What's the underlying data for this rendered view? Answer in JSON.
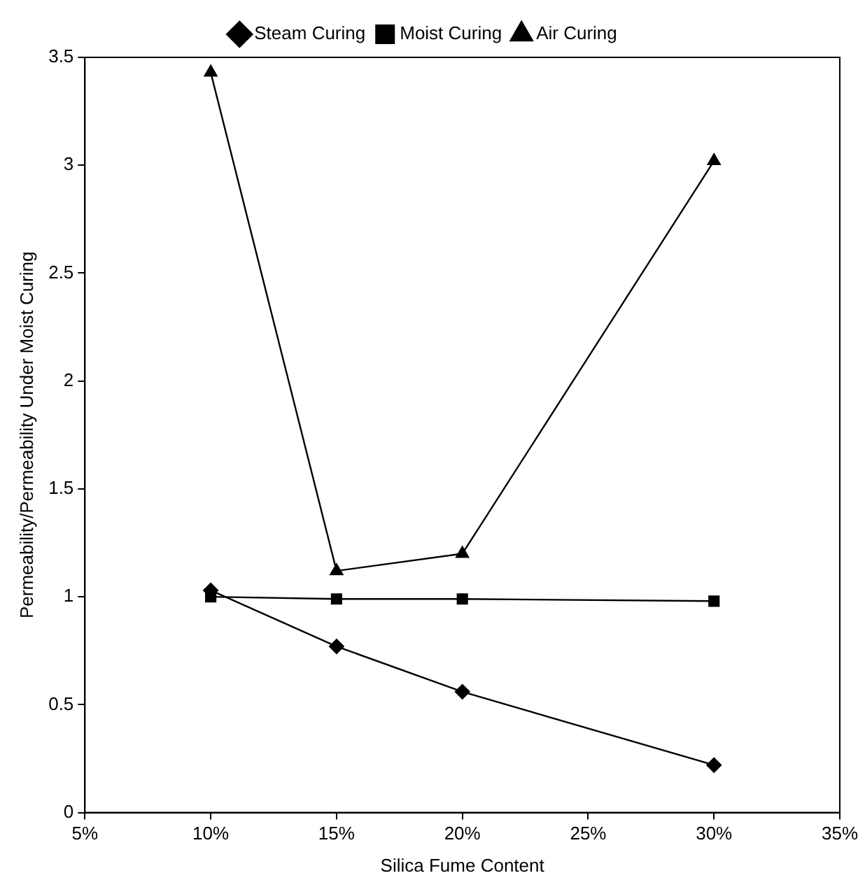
{
  "chart_data": {
    "type": "line",
    "xlabel": "Silica Fume Content",
    "ylabel": "Permeability/Permeability Under Moist Curing",
    "x": [
      10,
      15,
      20,
      30
    ],
    "series": [
      {
        "name": "Steam Curing",
        "color": "#000000",
        "marker": "diamond",
        "values": [
          1.03,
          0.77,
          0.56,
          0.22
        ]
      },
      {
        "name": "Moist Curing",
        "color": "#000000",
        "marker": "square",
        "values": [
          1.0,
          0.99,
          0.99,
          0.98
        ]
      },
      {
        "name": "Air Curing",
        "color": "#000000",
        "marker": "triangle",
        "values": [
          3.43,
          1.12,
          1.2,
          3.02
        ]
      }
    ],
    "xlim": [
      5,
      35
    ],
    "xticks": [
      {
        "value": 5,
        "label": "5%"
      },
      {
        "value": 10,
        "label": "10%"
      },
      {
        "value": 15,
        "label": "15%"
      },
      {
        "value": 20,
        "label": "20%"
      },
      {
        "value": 25,
        "label": "25%"
      },
      {
        "value": 30,
        "label": "30%"
      },
      {
        "value": 35,
        "label": "35%"
      }
    ],
    "ylim": [
      0,
      3.5
    ],
    "yticks": [
      0,
      0.5,
      1,
      1.5,
      2,
      2.5,
      3,
      3.5
    ],
    "grid": false,
    "legend": "top",
    "line_style": "solid"
  }
}
